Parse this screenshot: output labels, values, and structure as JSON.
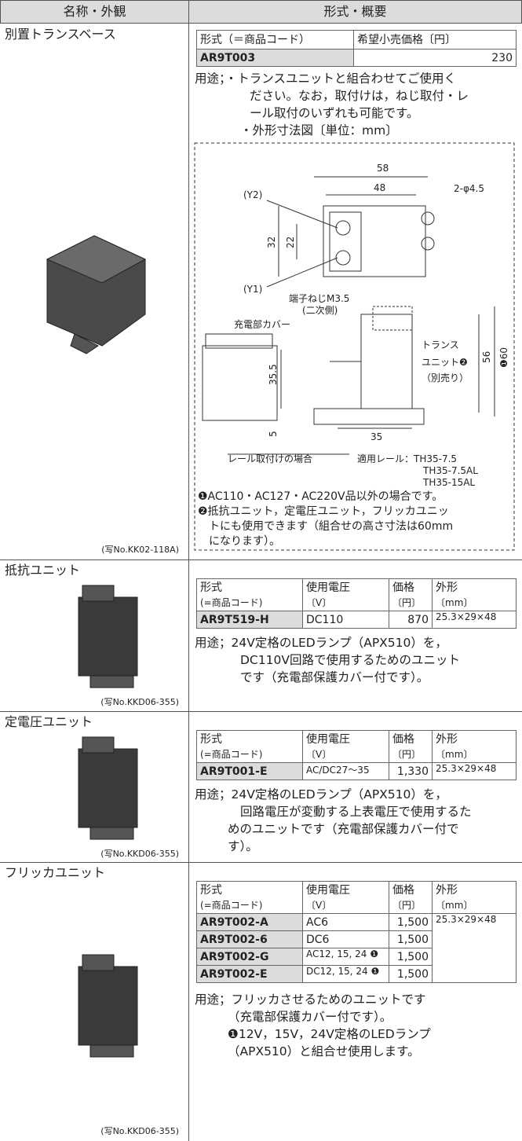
{
  "header": {
    "col1": "名称・外観",
    "col2": "形式・概要"
  },
  "sections": [
    {
      "name": "別置トランスベース",
      "photo_caption": "(写No.KK02-118A)",
      "table": {
        "headers": [
          [
            "形式（＝商品コード）"
          ],
          [
            "希望小売価格〔円〕"
          ]
        ],
        "rows": [
          [
            "AR9T003",
            "230"
          ]
        ]
      },
      "usage": [
        "用途；・トランスユニットと組合わせてご使用く",
        "ださい。なお，取付けは，ねじ取付・レ",
        "ール取付のいずれも可能です。",
        "・外形寸法図〔単位：mm〕"
      ],
      "diagram": [
        "58",
        "48",
        "2-φ4.5",
        "(Y2)",
        "32",
        "22",
        "(Y1)",
        "端子ねじM3.5",
        "(二次側)",
        "充電部カバー",
        "トランス",
        "ユニット❷",
        "（別売り）",
        "56",
        "❶60",
        "35.5",
        "5",
        "35",
        "レール取付けの場合",
        "適用レール：TH35-7.5",
        "TH35-7.5AL",
        "TH35-15AL"
      ],
      "notes": [
        "❶AC110・AC127・AC220V品以外の場合です。",
        "❷抵抗ユニット，定電圧ユニット，フリッカユニッ",
        "トにも使用できます（組合せの高さ寸法は60mm",
        "になります）。"
      ]
    },
    {
      "name": "抵抗ユニット",
      "photo_caption": "(写No.KKD06-355)",
      "table": {
        "headers": [
          [
            "形式",
            "(=商品コード)"
          ],
          [
            "使用電圧",
            "〔V〕"
          ],
          [
            "価格",
            "〔円〕"
          ],
          [
            "外形",
            "〔mm〕"
          ]
        ],
        "rows": [
          [
            "AR9T519-H",
            "DC110",
            "870",
            "25.3×29×48"
          ]
        ]
      },
      "usage": [
        "用途；24V定格のLEDランプ（APX510）を，",
        "DC110V回路で使用するためのユニット",
        "です（充電部保護カバー付です）。"
      ]
    },
    {
      "name": "定電圧ユニット",
      "photo_caption": "(写No.KKD06-355)",
      "table": {
        "headers": [
          [
            "形式",
            "(=商品コード)"
          ],
          [
            "使用電圧",
            "〔V〕"
          ],
          [
            "価格",
            "〔円〕"
          ],
          [
            "外形",
            "〔mm〕"
          ]
        ],
        "rows": [
          [
            "AR9T001-E",
            "AC/DC27～35",
            "1,330",
            "25.3×29×48"
          ]
        ]
      },
      "usage": [
        "用途；24V定格のLEDランプ（APX510）を，",
        "回路電圧が変動する上表電圧で使用するた",
        "めのユニットです（充電部保護カバー付で",
        "す）。"
      ]
    },
    {
      "name": "フリッカユニット",
      "photo_caption": "(写No.KKD06-355)",
      "table": {
        "headers": [
          [
            "形式",
            "(=商品コード)"
          ],
          [
            "使用電圧",
            "〔V〕"
          ],
          [
            "価格",
            "〔円〕"
          ],
          [
            "外形",
            "〔mm〕"
          ]
        ],
        "rows": [
          [
            "AR9T002-A",
            "AC6",
            "1,500",
            "25.3×29×48"
          ],
          [
            "AR9T002-6",
            "DC6",
            "1,500"
          ],
          [
            "AR9T002-G",
            "AC12, 15, 24 ❶",
            "1,500"
          ],
          [
            "AR9T002-E",
            "DC12, 15, 24 ❶",
            "1,500"
          ]
        ]
      },
      "usage": [
        "用途；フリッカさせるためのユニットです",
        "（充電部保護カバー付です）。",
        "❶12V，15V，24V定格のLEDランプ",
        "（APX510）と組合せ使用します。"
      ]
    }
  ]
}
